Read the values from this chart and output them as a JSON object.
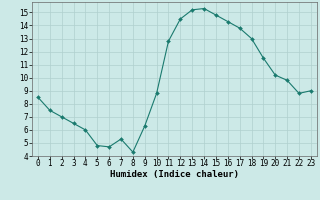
{
  "x": [
    0,
    1,
    2,
    3,
    4,
    5,
    6,
    7,
    8,
    9,
    10,
    11,
    12,
    13,
    14,
    15,
    16,
    17,
    18,
    19,
    20,
    21,
    22,
    23
  ],
  "y": [
    8.5,
    7.5,
    7.0,
    6.5,
    6.0,
    4.8,
    4.7,
    5.3,
    4.3,
    6.3,
    8.8,
    12.8,
    14.5,
    15.2,
    15.3,
    14.8,
    14.3,
    13.8,
    13.0,
    11.5,
    10.2,
    9.8,
    8.8,
    9.0
  ],
  "line_color": "#1a7a6e",
  "marker": "D",
  "marker_size": 2.0,
  "bg_color": "#cce9e7",
  "grid_color": "#b0d0ce",
  "xlabel": "Humidex (Indice chaleur)",
  "xlim": [
    -0.5,
    23.5
  ],
  "ylim": [
    4,
    15.8
  ],
  "yticks": [
    4,
    5,
    6,
    7,
    8,
    9,
    10,
    11,
    12,
    13,
    14,
    15
  ],
  "xticks": [
    0,
    1,
    2,
    3,
    4,
    5,
    6,
    7,
    8,
    9,
    10,
    11,
    12,
    13,
    14,
    15,
    16,
    17,
    18,
    19,
    20,
    21,
    22,
    23
  ],
  "tick_fontsize": 5.5,
  "xlabel_fontsize": 6.5
}
